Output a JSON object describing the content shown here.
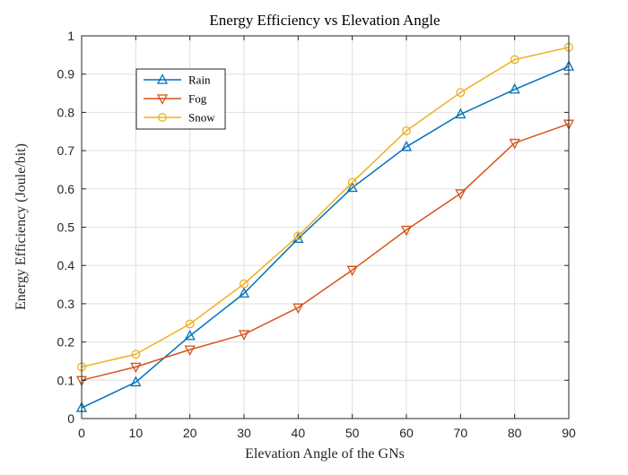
{
  "chart_data": {
    "type": "line",
    "title": "Energy Efficiency vs Elevation Angle",
    "xlabel": "Elevation Angle of the GNs",
    "ylabel": "Energy Efficiency (Joule/bit)",
    "xlim": [
      0,
      90
    ],
    "ylim": [
      0,
      1
    ],
    "x_ticks": [
      0,
      10,
      20,
      30,
      40,
      50,
      60,
      70,
      80,
      90
    ],
    "y_ticks": [
      0,
      0.1,
      0.2,
      0.3,
      0.4,
      0.5,
      0.6,
      0.7,
      0.8,
      0.9,
      1
    ],
    "x_tick_labels": [
      "0",
      "10",
      "20",
      "30",
      "40",
      "50",
      "60",
      "70",
      "80",
      "90"
    ],
    "y_tick_labels": [
      "0",
      "0.1",
      "0.2",
      "0.3",
      "0.4",
      "0.5",
      "0.6",
      "0.7",
      "0.8",
      "0.9",
      "1"
    ],
    "grid": true,
    "legend_position": "top-left",
    "x": [
      0,
      10,
      20,
      30,
      40,
      50,
      60,
      70,
      80,
      90
    ],
    "series": [
      {
        "name": "Rain",
        "marker": "triangle-up",
        "color": "#0072BD",
        "values": [
          0.028,
          0.095,
          0.216,
          0.327,
          0.47,
          0.603,
          0.71,
          0.795,
          0.86,
          0.92
        ]
      },
      {
        "name": "Fog",
        "marker": "triangle-down",
        "color": "#D95319",
        "values": [
          0.1,
          0.135,
          0.18,
          0.22,
          0.29,
          0.388,
          0.493,
          0.588,
          0.72,
          0.77
        ]
      },
      {
        "name": "Snow",
        "marker": "circle",
        "color": "#EDB120",
        "values": [
          0.135,
          0.168,
          0.247,
          0.352,
          0.477,
          0.617,
          0.752,
          0.852,
          0.938,
          0.97
        ]
      }
    ]
  }
}
